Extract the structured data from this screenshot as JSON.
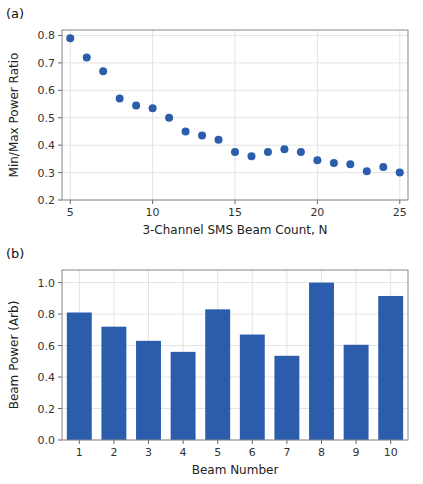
{
  "chart_data": [
    {
      "type": "scatter",
      "annotations": [
        "(a)"
      ],
      "xlabel": "3-Channel SMS Beam Count, N",
      "ylabel": "Min/Max Power Ratio",
      "x": [
        5,
        6,
        7,
        8,
        9,
        10,
        11,
        12,
        13,
        14,
        15,
        16,
        17,
        18,
        19,
        20,
        21,
        22,
        23,
        24,
        25
      ],
      "values": [
        0.79,
        0.72,
        0.67,
        0.57,
        0.545,
        0.535,
        0.5,
        0.45,
        0.435,
        0.42,
        0.375,
        0.36,
        0.375,
        0.385,
        0.375,
        0.345,
        0.335,
        0.33,
        0.305,
        0.32,
        0.3
      ],
      "color": "#2b5dac",
      "xlim": [
        4.5,
        25.5
      ],
      "ylim": [
        0.2,
        0.82
      ],
      "xticks": [
        5,
        10,
        15,
        20,
        25
      ],
      "yticks": [
        0.2,
        0.3,
        0.4,
        0.5,
        0.6,
        0.7,
        0.8
      ],
      "grid": true
    },
    {
      "type": "bar",
      "annotations": [
        "(b)"
      ],
      "xlabel": "Beam Number",
      "ylabel": "Beam Power (Arb)",
      "x": [
        1,
        2,
        3,
        4,
        5,
        6,
        7,
        8,
        9,
        10
      ],
      "values": [
        0.81,
        0.72,
        0.63,
        0.56,
        0.83,
        0.67,
        0.535,
        1.0,
        0.605,
        0.915
      ],
      "color": "#2b5dac",
      "xlim": [
        0.5,
        10.5
      ],
      "ylim": [
        0,
        1.08
      ],
      "xticks": [
        1,
        2,
        3,
        4,
        5,
        6,
        7,
        8,
        9,
        10
      ],
      "yticks": [
        {
          "value": 0,
          "label": "0.0"
        },
        0.2,
        0.4,
        0.6,
        0.8,
        {
          "value": 1,
          "label": "1.0"
        }
      ],
      "grid": true
    }
  ]
}
